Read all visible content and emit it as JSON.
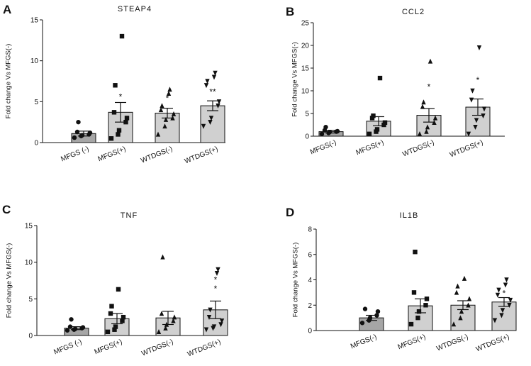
{
  "chart_data": [
    {
      "panel": "A",
      "type": "bar",
      "title": "STEAP4",
      "ylabel": "Fold change Vs MFGS(-)",
      "xlabel": "",
      "ylim": [
        0,
        15
      ],
      "yticks": [
        "0",
        "5",
        "10",
        "15"
      ],
      "categories": [
        "MFGS (-)",
        "MFGS(+)",
        "WTDGS(-)",
        "WTDGS(+)"
      ],
      "bar_colors": [
        "#a6a6a6",
        "#d0d0d0",
        "#d0d0d0",
        "#d0d0d0"
      ],
      "values": [
        1.1,
        3.7,
        3.6,
        4.5
      ],
      "errors": [
        0.3,
        1.2,
        0.6,
        0.6
      ],
      "markers": [
        "circle",
        "square",
        "triangle",
        "triangle-down"
      ],
      "points": [
        [
          0.6,
          0.8,
          0.9,
          1.0,
          1.2,
          1.3,
          2.5
        ],
        [
          0.5,
          1.0,
          1.5,
          2.5,
          3.0,
          3.7,
          7.0,
          13.0
        ],
        [
          1.0,
          2.0,
          2.8,
          3.0,
          3.5,
          4.0,
          4.5,
          6.0,
          6.5
        ],
        [
          2.0,
          2.5,
          3.0,
          4.5,
          5.0,
          7.0,
          7.5,
          8.0,
          8.5
        ]
      ],
      "annotations": [
        {
          "category": 1,
          "text": "*",
          "y": 5.7
        },
        {
          "category": 2,
          "text": "*",
          "y": 5.5
        },
        {
          "category": 3,
          "text": "**",
          "y": 6.3
        }
      ]
    },
    {
      "panel": "B",
      "type": "bar",
      "title": "CCL2",
      "ylabel": "Fold change Vs MFGS(-)",
      "xlabel": "",
      "ylim": [
        0,
        25
      ],
      "yticks": [
        "0",
        "5",
        "10",
        "15",
        "20",
        "25"
      ],
      "categories": [
        "MFGS(-)",
        "MFGS(+)",
        "WTDGS(-)",
        "WTDGS(+)"
      ],
      "bar_colors": [
        "#a6a6a6",
        "#d0d0d0",
        "#d0d0d0",
        "#d0d0d0"
      ],
      "values": [
        1.0,
        3.3,
        4.6,
        6.4
      ],
      "errors": [
        0.3,
        1.0,
        1.5,
        1.8
      ],
      "markers": [
        "circle",
        "square",
        "triangle",
        "triangle-down"
      ],
      "points": [
        [
          0.5,
          0.7,
          0.9,
          1.0,
          1.1,
          1.3,
          2.0
        ],
        [
          0.5,
          1.0,
          1.5,
          2.5,
          3.0,
          4.0,
          4.5,
          12.8
        ],
        [
          0.5,
          1.0,
          2.0,
          3.0,
          4.0,
          6.5,
          7.5,
          16.5
        ],
        [
          0.5,
          2.0,
          3.5,
          4.5,
          6.0,
          8.0,
          10.0,
          19.5
        ]
      ],
      "annotations": [
        {
          "category": 2,
          "text": "*",
          "y": 11.0
        },
        {
          "category": 3,
          "text": "*",
          "y": 12.5
        }
      ]
    },
    {
      "panel": "C",
      "type": "bar",
      "title": "TNF",
      "ylabel": "Fold change Vs MFGS(-)",
      "xlabel": "",
      "ylim": [
        0,
        15
      ],
      "yticks": [
        "0",
        "5",
        "10",
        "15"
      ],
      "categories": [
        "MFGS (-)",
        "MFGS(+)",
        "WTDGS(-)",
        "WTDGS(+)"
      ],
      "bar_colors": [
        "#a6a6a6",
        "#d0d0d0",
        "#d0d0d0",
        "#d0d0d0"
      ],
      "values": [
        1.0,
        2.3,
        2.4,
        3.5
      ],
      "errors": [
        0.2,
        0.7,
        0.9,
        1.2
      ],
      "markers": [
        "circle",
        "square",
        "triangle",
        "triangle-down"
      ],
      "points": [
        [
          0.7,
          0.8,
          0.9,
          1.0,
          1.1,
          1.2,
          2.2
        ],
        [
          0.5,
          0.8,
          1.2,
          2.0,
          2.5,
          3.0,
          4.0,
          6.3
        ],
        [
          0.5,
          1.0,
          1.5,
          2.0,
          2.5,
          3.0,
          10.7
        ],
        [
          0.8,
          1.0,
          1.2,
          1.5,
          2.0,
          2.5,
          3.5,
          8.5,
          9.0
        ]
      ],
      "annotations": [
        {
          "category": 3,
          "text": "*",
          "y": 6.5
        },
        {
          "category": 3,
          "text": "*",
          "y": 7.7
        }
      ]
    },
    {
      "panel": "D",
      "type": "bar",
      "title": "IL1B",
      "ylabel": "Fold change Vs MFGS(-)",
      "xlabel": "",
      "ylim": [
        0,
        8
      ],
      "yticks": [
        "0",
        "2",
        "4",
        "6",
        "8"
      ],
      "categories": [
        "MFGS(-)",
        "MFGS(+)",
        "WTDGS(-)",
        "WTDGS(+)"
      ],
      "bar_colors": [
        "#a6a6a6",
        "#d0d0d0",
        "#d0d0d0",
        "#d0d0d0"
      ],
      "values": [
        1.0,
        1.95,
        2.0,
        2.25
      ],
      "errors": [
        0.2,
        0.55,
        0.35,
        0.35
      ],
      "markers": [
        "circle",
        "square",
        "triangle",
        "triangle-down"
      ],
      "points": [
        [
          0.6,
          0.8,
          1.0,
          1.2,
          1.5,
          1.7
        ],
        [
          0.5,
          1.0,
          1.5,
          2.0,
          2.5,
          3.0,
          6.2
        ],
        [
          0.5,
          1.0,
          1.5,
          2.0,
          2.5,
          3.0,
          3.5,
          4.1
        ],
        [
          0.8,
          1.2,
          1.6,
          2.0,
          2.4,
          2.8,
          3.2,
          3.6,
          4.0
        ]
      ],
      "annotations": [
        {
          "category": 3,
          "text": "*",
          "y": 3.0
        }
      ]
    }
  ]
}
